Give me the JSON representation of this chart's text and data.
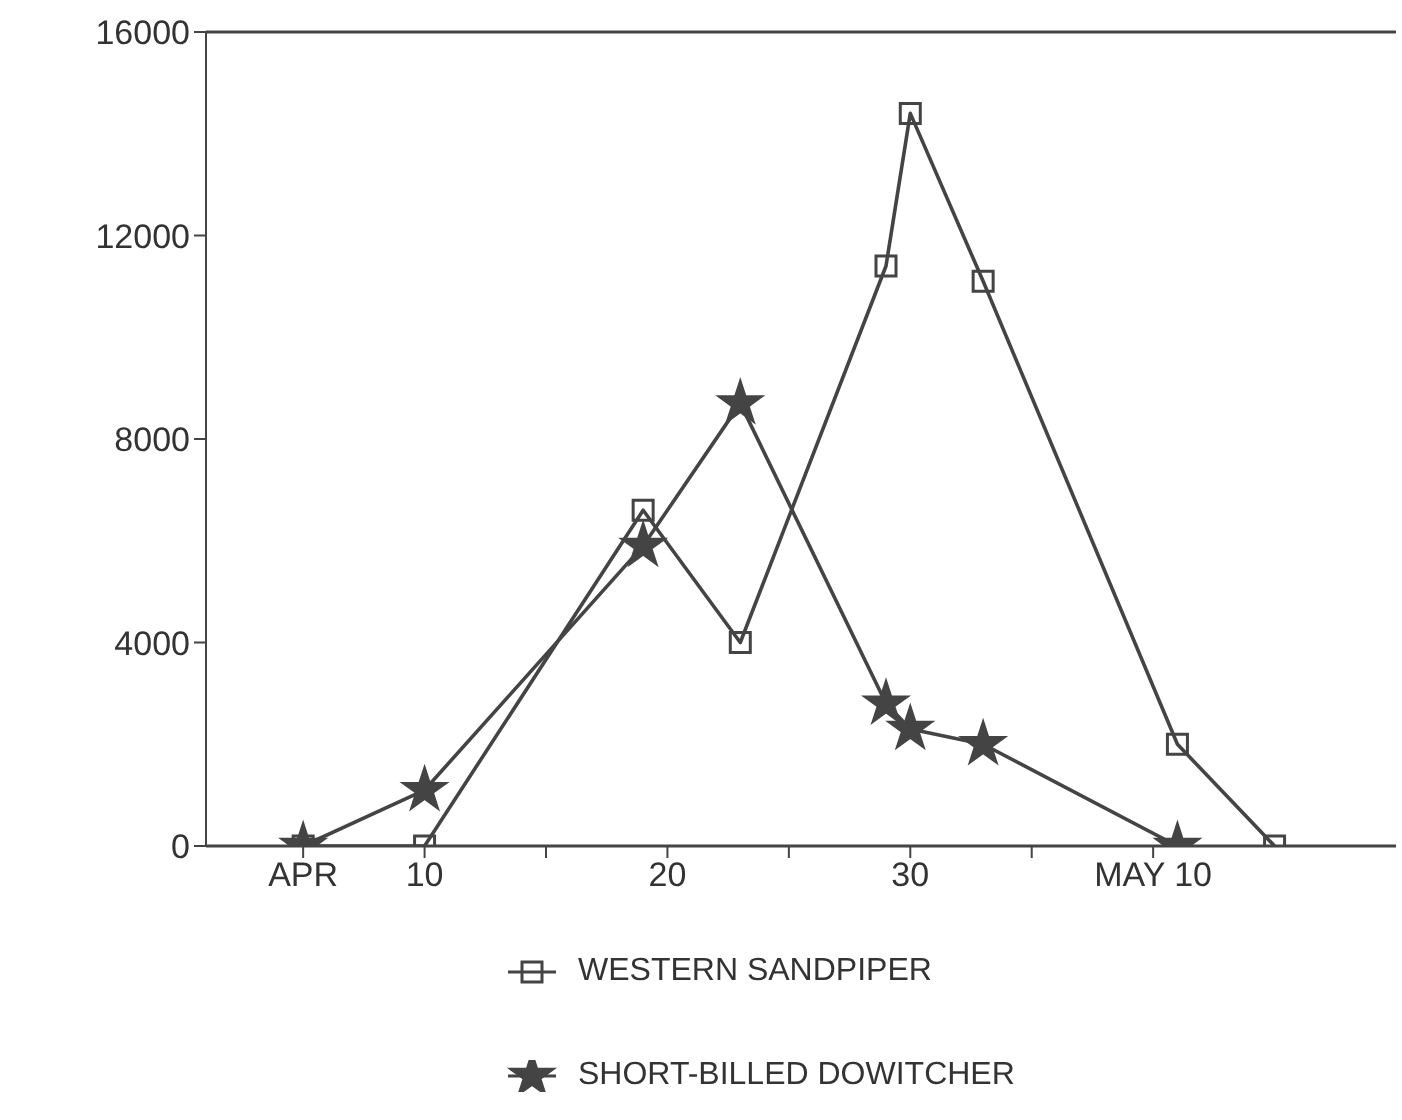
{
  "chart_data": {
    "type": "line",
    "x": [
      "--04-05",
      "--04-10",
      "--04-19",
      "--04-23",
      "--04-29",
      "--04-30",
      "--05-03",
      "--05-11",
      "--05-15"
    ],
    "series": [
      {
        "name": "WESTERN SANDPIPER",
        "color": "#444444",
        "marker": "square",
        "values": [
          0,
          0,
          6600,
          4000,
          11400,
          14400,
          11100,
          2000,
          0
        ]
      },
      {
        "name": "SHORT-BILLED DOWITCHER",
        "color": "#444444",
        "marker": "star",
        "x": [
          "--04-05",
          "--04-10",
          "--04-19",
          "--04-23",
          "--04-29",
          "--04-30",
          "--05-03",
          "--05-11"
        ],
        "values": [
          0,
          1100,
          5900,
          8700,
          2800,
          2300,
          2000,
          0
        ]
      }
    ],
    "xlim": [
      "--04-01",
      "--05-20"
    ],
    "xticks": [
      {
        "value": "--04-05",
        "label": "APR"
      },
      {
        "value": "--04-10",
        "label": "10"
      },
      {
        "value": "--04-15",
        "label": null
      },
      {
        "value": "--04-20",
        "label": "20"
      },
      {
        "value": "--04-25",
        "label": null
      },
      {
        "value": "--04-30",
        "label": "30"
      },
      {
        "value": "--05-05",
        "label": null
      },
      {
        "value": "--05-10",
        "label": "MAY 10"
      }
    ],
    "ylim": [
      0,
      16000
    ],
    "yticks": [
      0,
      4000,
      8000,
      12000,
      16000
    ],
    "grid": false,
    "legend": "bottom",
    "line_style": "solid"
  }
}
